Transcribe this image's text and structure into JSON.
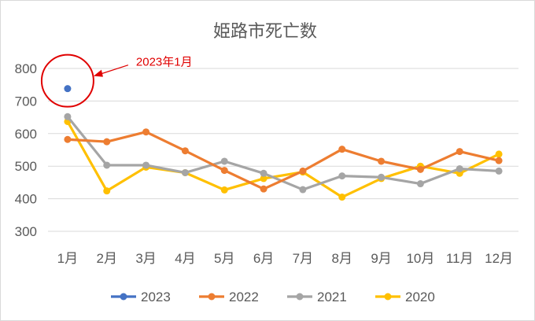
{
  "chart_data": {
    "type": "line",
    "title": "姫路市死亡数",
    "categories": [
      "1月",
      "2月",
      "3月",
      "4月",
      "5月",
      "6月",
      "7月",
      "8月",
      "9月",
      "10月",
      "11月",
      "12月"
    ],
    "ylim": [
      300,
      800
    ],
    "yticks": [
      300,
      400,
      500,
      600,
      700,
      800
    ],
    "grid": true,
    "legend_position": "bottom",
    "series": [
      {
        "name": "2023",
        "color": "#4472c4",
        "values": [
          738,
          null,
          null,
          null,
          null,
          null,
          null,
          null,
          null,
          null,
          null,
          null
        ]
      },
      {
        "name": "2022",
        "color": "#ed7d31",
        "values": [
          582,
          575,
          605,
          547,
          487,
          430,
          485,
          552,
          515,
          490,
          545,
          517
        ]
      },
      {
        "name": "2021",
        "color": "#a5a5a5",
        "values": [
          652,
          503,
          503,
          480,
          515,
          478,
          428,
          470,
          466,
          446,
          492,
          485
        ]
      },
      {
        "name": "2020",
        "color": "#ffc000",
        "values": [
          637,
          424,
          497,
          480,
          427,
          462,
          482,
          405,
          462,
          500,
          478,
          537
        ]
      }
    ],
    "annotation": {
      "text": "2023年1月",
      "color": "#e00000",
      "category_index": 0,
      "value": 738
    }
  }
}
